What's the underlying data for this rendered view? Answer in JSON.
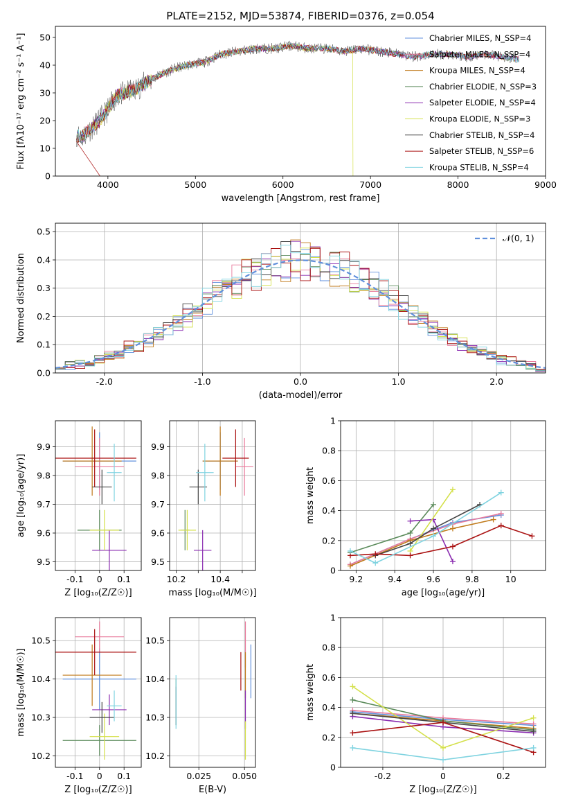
{
  "chart_data": [
    {
      "id": "spectrum",
      "type": "line",
      "title": "PLATE=2152, MJD=53874, FIBERID=0376, z=0.054",
      "xlabel": "wavelength [Angstrom, rest frame]",
      "ylabel": "Flux [fλ10⁻¹⁷ erg cm⁻² s⁻¹ A⁻¹]",
      "xlim": [
        3400,
        9000
      ],
      "ylim": [
        0,
        54
      ],
      "xticks": [
        4000,
        5000,
        6000,
        7000,
        8000,
        9000
      ],
      "yticks": [
        0,
        10,
        20,
        30,
        40,
        50
      ],
      "grid": false,
      "legend_position": "top-right",
      "continuum": {
        "x": [
          3640,
          3700,
          3800,
          3900,
          4000,
          4100,
          4300,
          4500,
          4700,
          4900,
          5100,
          5300,
          5500,
          5700,
          5900,
          6100,
          6300,
          6500,
          6700,
          6900,
          7100,
          7300,
          7500,
          7700,
          7900,
          8100,
          8300,
          8500,
          8700
        ],
        "y": [
          15,
          14,
          17,
          20,
          24,
          29,
          31,
          35,
          38,
          40,
          41,
          44,
          45,
          46,
          46,
          47,
          46,
          46,
          45,
          46,
          45,
          44,
          43,
          44,
          44,
          43,
          44,
          43,
          42
        ]
      },
      "series": [
        {
          "name": "Chabrier MILES, N_SSP=4",
          "color": "#5f8fdc",
          "ssp": 4
        },
        {
          "name": "Salpeter MILES, N_SSP=4",
          "color": "#e8799b",
          "ssp": 4
        },
        {
          "name": "Kroupa MILES, N_SSP=4",
          "color": "#c07a1b",
          "ssp": 4
        },
        {
          "name": "Chabrier ELODIE, N_SSP=3",
          "color": "#5a8a5a",
          "ssp": 3
        },
        {
          "name": "Salpeter ELODIE, N_SSP=4",
          "color": "#8a2cb0",
          "ssp": 4
        },
        {
          "name": "Kroupa ELODIE, N_SSP=3",
          "color": "#d4e04a",
          "ssp": 3
        },
        {
          "name": "Chabrier STELIB, N_SSP=4",
          "color": "#444444",
          "ssp": 4
        },
        {
          "name": "Salpeter STELIB, N_SSP=6",
          "color": "#aa1111",
          "ssp": 6
        },
        {
          "name": "Kroupa STELIB, N_SSP=4",
          "color": "#7fd3e0",
          "ssp": 4
        }
      ]
    },
    {
      "id": "residuals",
      "type": "line",
      "xlabel": "(data-model)/error",
      "ylabel": "Normed distribution",
      "xlim": [
        -2.5,
        2.5
      ],
      "ylim": [
        0,
        0.53
      ],
      "xticks": [
        -2,
        -1,
        0,
        1,
        2
      ],
      "yticks": [
        0.0,
        0.1,
        0.2,
        0.3,
        0.4,
        0.5
      ],
      "grid": true,
      "legend_position": "top-right",
      "reference": {
        "name": "𝒩(0, 1)",
        "mean": 0,
        "sigma": 1,
        "color": "#5f8fdc"
      },
      "bin_width": 0.1
    },
    {
      "id": "z-age",
      "type": "scatter",
      "xlabel": "Z [log₁₀(Z/Z☉)]",
      "ylabel": "age  [log₁₀(age/yr)]",
      "xlim": [
        -0.18,
        0.17
      ],
      "ylim": [
        9.47,
        9.99
      ],
      "xticks": [
        -0.1,
        0.0,
        0.1
      ],
      "yticks": [
        9.5,
        9.6,
        9.7,
        9.8,
        9.9
      ],
      "grid": true,
      "points": [
        {
          "x": 0.0,
          "y": 9.85,
          "xerr": 0.15,
          "yerr": 0.1,
          "color": "#5f8fdc"
        },
        {
          "x": 0.0,
          "y": 9.83,
          "xerr": 0.1,
          "yerr": 0.1,
          "color": "#e8799b"
        },
        {
          "x": -0.03,
          "y": 9.85,
          "xerr": 0.12,
          "yerr": 0.12,
          "color": "#c07a1b"
        },
        {
          "x": 0.0,
          "y": 9.61,
          "xerr": 0.09,
          "yerr": 0.07,
          "color": "#5a8a5a"
        },
        {
          "x": 0.04,
          "y": 9.54,
          "xerr": 0.07,
          "yerr": 0.07,
          "color": "#8a2cb0"
        },
        {
          "x": 0.02,
          "y": 9.61,
          "xerr": 0.06,
          "yerr": 0.07,
          "color": "#d4e04a"
        },
        {
          "x": 0.01,
          "y": 9.76,
          "xerr": 0.04,
          "yerr": 0.06,
          "color": "#444444"
        },
        {
          "x": -0.02,
          "y": 9.86,
          "xerr": 0.17,
          "yerr": 0.1,
          "color": "#aa1111"
        },
        {
          "x": 0.06,
          "y": 9.81,
          "xerr": 0.03,
          "yerr": 0.1,
          "color": "#7fd3e0"
        }
      ]
    },
    {
      "id": "mass-age",
      "type": "scatter",
      "xlabel": "mass [log₁₀(M/M☉)]",
      "ylabel": "",
      "xlim": [
        10.17,
        10.56
      ],
      "ylim": [
        9.47,
        9.99
      ],
      "xticks": [
        10.2,
        10.3,
        10.4,
        10.5
      ],
      "xticklabels": [
        "10.2",
        "",
        "10.4",
        ""
      ],
      "yticks": [
        9.5,
        9.6,
        9.7,
        9.8,
        9.9
      ],
      "grid": true,
      "points": [
        {
          "x": 10.4,
          "y": 9.85,
          "xerr": 0.08,
          "yerr": 0.1,
          "color": "#5f8fdc"
        },
        {
          "x": 10.51,
          "y": 9.83,
          "xerr": 0.04,
          "yerr": 0.1,
          "color": "#e8799b"
        },
        {
          "x": 10.4,
          "y": 9.85,
          "xerr": 0.08,
          "yerr": 0.12,
          "color": "#c07a1b"
        },
        {
          "x": 10.24,
          "y": 9.61,
          "xerr": 0.02,
          "yerr": 0.07,
          "color": "#5a8a5a"
        },
        {
          "x": 10.32,
          "y": 9.54,
          "xerr": 0.04,
          "yerr": 0.07,
          "color": "#8a2cb0"
        },
        {
          "x": 10.25,
          "y": 9.61,
          "xerr": 0.04,
          "yerr": 0.07,
          "color": "#d4e04a"
        },
        {
          "x": 10.3,
          "y": 9.76,
          "xerr": 0.04,
          "yerr": 0.06,
          "color": "#444444"
        },
        {
          "x": 10.47,
          "y": 9.86,
          "xerr": 0.06,
          "yerr": 0.1,
          "color": "#aa1111"
        },
        {
          "x": 10.33,
          "y": 9.81,
          "xerr": 0.04,
          "yerr": 0.1,
          "color": "#7fd3e0"
        }
      ]
    },
    {
      "id": "age-weight",
      "type": "line",
      "xlabel": "age  [log₁₀(age/yr)]",
      "ylabel": "mass weight",
      "xlim": [
        9.12,
        10.18
      ],
      "ylim": [
        0,
        1
      ],
      "xticks": [
        9.2,
        9.4,
        9.6,
        9.8,
        10.0
      ],
      "yticks": [
        0.0,
        0.2,
        0.4,
        0.6,
        0.8,
        1.0
      ],
      "grid": true,
      "series": [
        {
          "color": "#5f8fdc",
          "x": [
            9.17,
            9.48,
            9.7,
            9.95
          ],
          "y": [
            0.04,
            0.21,
            0.32,
            0.37
          ]
        },
        {
          "color": "#e8799b",
          "x": [
            9.17,
            9.48,
            9.7,
            9.95
          ],
          "y": [
            0.04,
            0.21,
            0.31,
            0.38
          ]
        },
        {
          "color": "#c07a1b",
          "x": [
            9.17,
            9.48,
            9.7,
            9.91
          ],
          "y": [
            0.03,
            0.2,
            0.28,
            0.34
          ]
        },
        {
          "color": "#5a8a5a",
          "x": [
            9.17,
            9.48,
            9.6
          ],
          "y": [
            0.12,
            0.25,
            0.44
          ]
        },
        {
          "color": "#8a2cb0",
          "x": [
            9.48,
            9.6,
            9.7
          ],
          "y": [
            0.33,
            0.34,
            0.06
          ]
        },
        {
          "color": "#d4e04a",
          "x": [
            9.48,
            9.7
          ],
          "y": [
            0.13,
            0.54
          ]
        },
        {
          "color": "#444444",
          "x": [
            9.3,
            9.48,
            9.6,
            9.84
          ],
          "y": [
            0.1,
            0.18,
            0.28,
            0.44
          ]
        },
        {
          "color": "#aa1111",
          "x": [
            9.17,
            9.3,
            9.48,
            9.7,
            9.95,
            10.11
          ],
          "y": [
            0.1,
            0.11,
            0.1,
            0.16,
            0.3,
            0.23
          ]
        },
        {
          "color": "#7fd3e0",
          "x": [
            9.17,
            9.3,
            9.6,
            9.95
          ],
          "y": [
            0.13,
            0.05,
            0.23,
            0.52
          ]
        }
      ]
    },
    {
      "id": "z-mass",
      "type": "scatter",
      "xlabel": "Z [log₁₀(Z/Z☉)]",
      "ylabel": "mass [log₁₀(M/M☉)]",
      "xlim": [
        -0.18,
        0.17
      ],
      "ylim": [
        10.17,
        10.56
      ],
      "xticks": [
        -0.1,
        0.0,
        0.1
      ],
      "yticks": [
        10.2,
        10.3,
        10.4,
        10.5
      ],
      "grid": true,
      "points": [
        {
          "x": 0.0,
          "y": 10.4,
          "xerr": 0.15,
          "yerr": 0.08,
          "color": "#5f8fdc"
        },
        {
          "x": 0.0,
          "y": 10.51,
          "xerr": 0.1,
          "yerr": 0.04,
          "color": "#e8799b"
        },
        {
          "x": -0.03,
          "y": 10.41,
          "xerr": 0.12,
          "yerr": 0.08,
          "color": "#c07a1b"
        },
        {
          "x": 0.0,
          "y": 10.24,
          "xerr": 0.15,
          "yerr": 0.04,
          "color": "#5a8a5a"
        },
        {
          "x": 0.04,
          "y": 10.32,
          "xerr": 0.07,
          "yerr": 0.04,
          "color": "#8a2cb0"
        },
        {
          "x": 0.02,
          "y": 10.25,
          "xerr": 0.06,
          "yerr": 0.06,
          "color": "#d4e04a"
        },
        {
          "x": 0.01,
          "y": 10.3,
          "xerr": 0.05,
          "yerr": 0.04,
          "color": "#444444"
        },
        {
          "x": -0.02,
          "y": 10.47,
          "xerr": 0.17,
          "yerr": 0.06,
          "color": "#aa1111"
        },
        {
          "x": 0.06,
          "y": 10.33,
          "xerr": 0.03,
          "yerr": 0.04,
          "color": "#7fd3e0"
        }
      ]
    },
    {
      "id": "ebv-mass",
      "type": "scatter",
      "xlabel": "E(B-V)",
      "ylabel": "",
      "xlim": [
        0.009,
        0.056
      ],
      "ylim": [
        10.17,
        10.56
      ],
      "xticks": [
        0.025,
        0.05
      ],
      "xticklabels": [
        "0.025",
        "0.050"
      ],
      "yticks": [
        10.2,
        10.3,
        10.4,
        10.5
      ],
      "grid": true,
      "points": [
        {
          "x": 0.0535,
          "y": 10.42,
          "xerr": 0,
          "yerr": 0.07,
          "color": "#5f8fdc"
        },
        {
          "x": 0.0505,
          "y": 10.49,
          "xerr": 0,
          "yerr": 0.06,
          "color": "#e8799b"
        },
        {
          "x": 0.0505,
          "y": 10.41,
          "xerr": 0,
          "yerr": 0.06,
          "color": "#c07a1b"
        },
        {
          "x": 0.0125,
          "y": 10.34,
          "xerr": 0,
          "yerr": 0.06,
          "color": "#5a8a5a"
        },
        {
          "x": 0.0505,
          "y": 10.32,
          "xerr": 0,
          "yerr": 0.05,
          "color": "#8a2cb0"
        },
        {
          "x": 0.0505,
          "y": 10.24,
          "xerr": 0,
          "yerr": 0.05,
          "color": "#d4e04a"
        },
        {
          "x": 0.0125,
          "y": 10.33,
          "xerr": 0,
          "yerr": 0.05,
          "color": "#444444"
        },
        {
          "x": 0.048,
          "y": 10.42,
          "xerr": 0,
          "yerr": 0.05,
          "color": "#aa1111"
        },
        {
          "x": 0.0125,
          "y": 10.34,
          "xerr": 0,
          "yerr": 0.07,
          "color": "#7fd3e0"
        }
      ]
    },
    {
      "id": "z-weight",
      "type": "line",
      "xlabel": "Z [log₁₀(Z/Z☉)]",
      "ylabel": "mass weight",
      "xlim": [
        -0.34,
        0.34
      ],
      "ylim": [
        0,
        1
      ],
      "xticks": [
        -0.2,
        0.0,
        0.2
      ],
      "yticks": [
        0.0,
        0.2,
        0.4,
        0.6,
        0.8,
        1.0
      ],
      "grid": true,
      "series": [
        {
          "color": "#5f8fdc",
          "x": [
            -0.3,
            0.0,
            0.3
          ],
          "y": [
            0.37,
            0.32,
            0.28
          ]
        },
        {
          "color": "#e8799b",
          "x": [
            -0.3,
            0.0,
            0.3
          ],
          "y": [
            0.38,
            0.33,
            0.29
          ]
        },
        {
          "color": "#c07a1b",
          "x": [
            -0.3,
            0.0,
            0.3
          ],
          "y": [
            0.36,
            0.31,
            0.26
          ]
        },
        {
          "color": "#5a8a5a",
          "x": [
            -0.3,
            0.0,
            0.3
          ],
          "y": [
            0.45,
            0.31,
            0.25
          ]
        },
        {
          "color": "#8a2cb0",
          "x": [
            -0.3,
            0.0,
            0.3
          ],
          "y": [
            0.34,
            0.27,
            0.23
          ]
        },
        {
          "color": "#d4e04a",
          "x": [
            -0.3,
            0.0,
            0.3
          ],
          "y": [
            0.54,
            0.13,
            0.33
          ]
        },
        {
          "color": "#444444",
          "x": [
            -0.3,
            0.0,
            0.3
          ],
          "y": [
            0.36,
            0.3,
            0.24
          ]
        },
        {
          "color": "#aa1111",
          "x": [
            -0.3,
            0.0,
            0.3
          ],
          "y": [
            0.23,
            0.3,
            0.1
          ]
        },
        {
          "color": "#7fd3e0",
          "x": [
            -0.3,
            0.0,
            0.3
          ],
          "y": [
            0.13,
            0.05,
            0.13
          ]
        }
      ]
    }
  ]
}
